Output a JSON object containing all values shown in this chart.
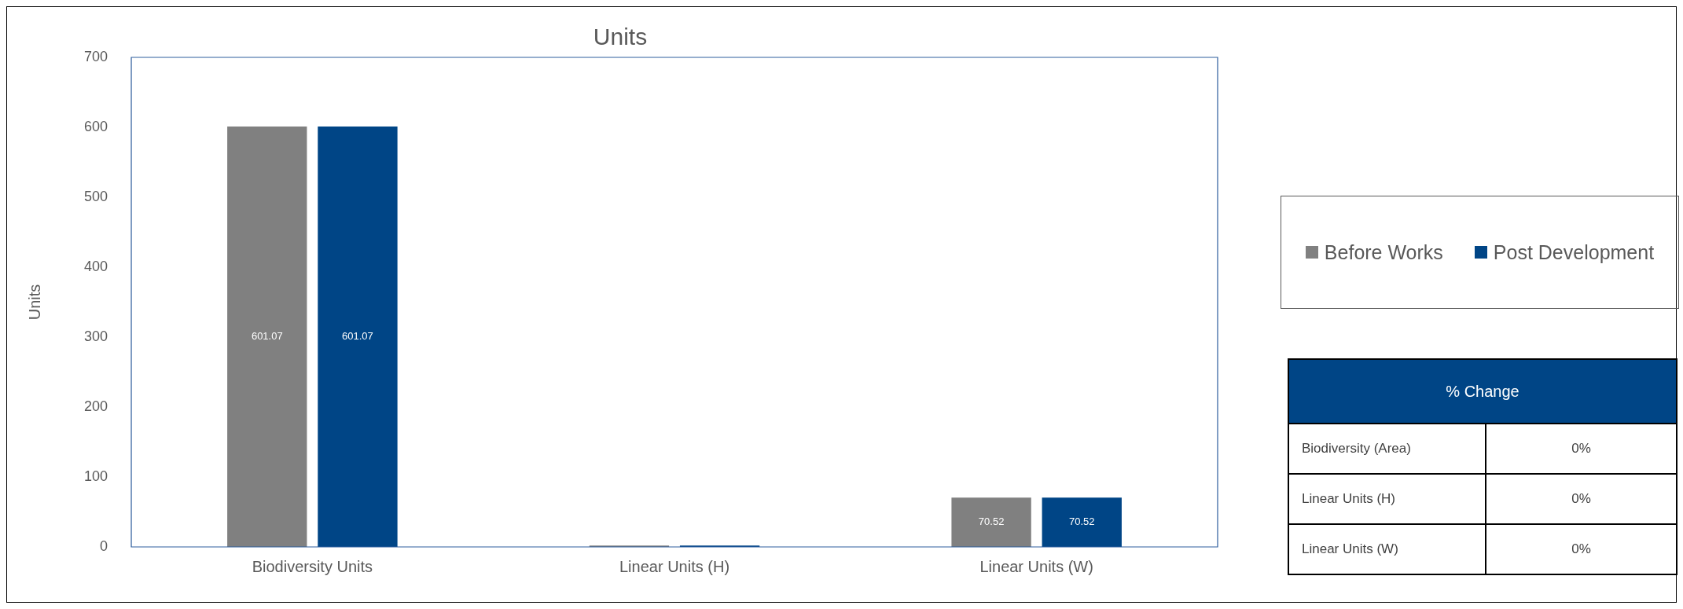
{
  "chart_data": [
    {
      "type": "bar",
      "title": "Units",
      "ylabel": "Units",
      "categories": [
        "Biodiversity Units",
        "Linear Units (H)",
        "Linear Units (W)"
      ],
      "series": [
        {
          "name": "Before Works",
          "color": "#808080",
          "values": [
            601.07,
            2,
            70.52
          ],
          "value_labels": [
            "601.07",
            null,
            "70.52"
          ]
        },
        {
          "name": "Post Development",
          "color": "#004586",
          "values": [
            601.07,
            2,
            70.52
          ],
          "value_labels": [
            "601.07",
            null,
            "70.52"
          ]
        }
      ],
      "ylim": [
        0,
        700
      ],
      "yticks": [
        0,
        100,
        200,
        300,
        400,
        500,
        600,
        700
      ],
      "grid": false,
      "legend": "right"
    },
    {
      "type": "other",
      "title": "% Change",
      "categories": [
        "Biodiversity (Area)",
        "Linear Units (H)",
        "Linear Units (W)"
      ],
      "value_labels": [
        "0%",
        "0%",
        "0%"
      ]
    }
  ]
}
